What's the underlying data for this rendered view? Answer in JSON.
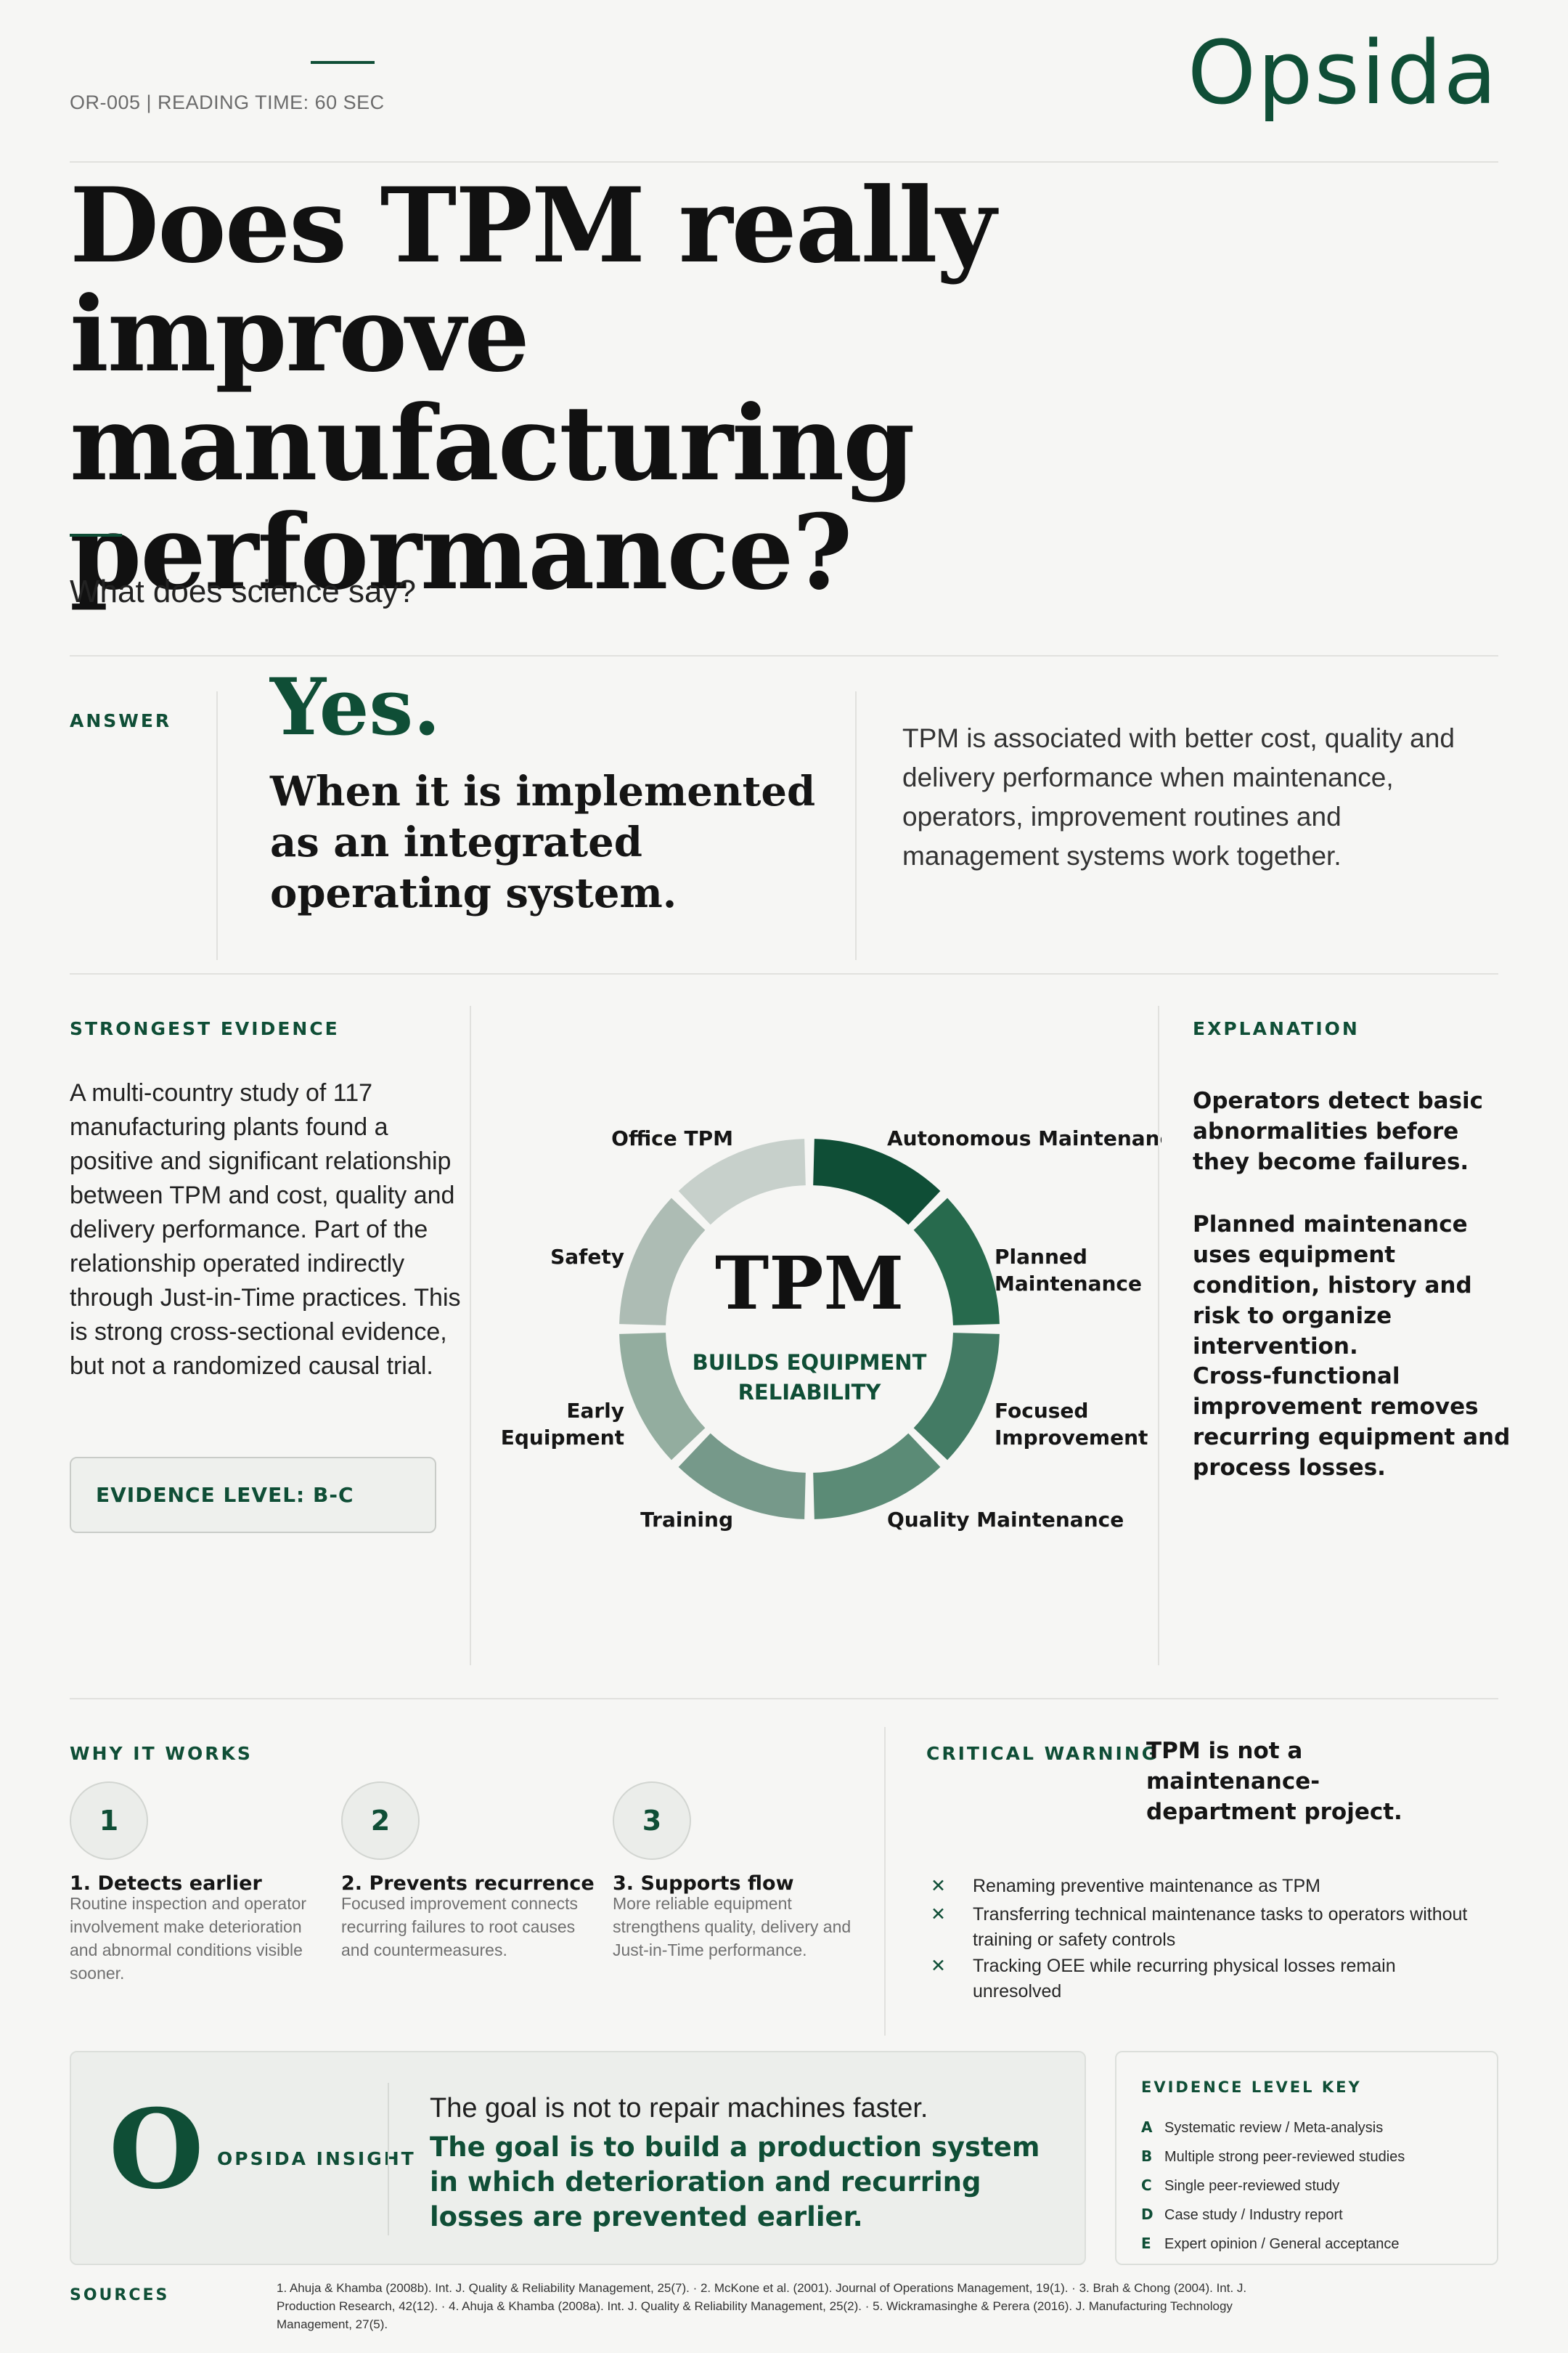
{
  "header": {
    "meta": "OR-005 | READING TIME: 60 SEC",
    "logo": "Opsida"
  },
  "hero": {
    "title": "Does TPM really improve manufacturing performance?",
    "subtitle": "What does science say?"
  },
  "answer": {
    "label": "ANSWER",
    "verdict": "Yes.",
    "headline": "When it is implemented as an integrated operating system.",
    "body": "TPM is associated with better cost, quality and delivery performance when maintenance, operators, improvement routines and management systems work together."
  },
  "evidence": {
    "label": "STRONGEST EVIDENCE",
    "text": "A multi-country study of 117 manufacturing plants found a positive and significant relationship between TPM and cost, quality and delivery performance. Part of the relationship operated indirectly through Just-in-Time practices. This is strong cross-sectional evidence, but not a randomized causal trial.",
    "level": "EVIDENCE LEVEL: B-C"
  },
  "diagram": {
    "center_title": "TPM",
    "center_sub_1": "BUILDS EQUIPMENT",
    "center_sub_2": "RELIABILITY",
    "pillars": [
      {
        "label_lines": [
          "Autonomous Maintenance"
        ],
        "color": "#0f4e36"
      },
      {
        "label_lines": [
          "Planned",
          "Maintenance"
        ],
        "color": "#276a4d"
      },
      {
        "label_lines": [
          "Focused",
          "Improvement"
        ],
        "color": "#437b64"
      },
      {
        "label_lines": [
          "Quality Maintenance"
        ],
        "color": "#5b8b76"
      },
      {
        "label_lines": [
          "Training"
        ],
        "color": "#76998a"
      },
      {
        "label_lines": [
          "Early",
          "Equipment"
        ],
        "color": "#93ad9f"
      },
      {
        "label_lines": [
          "Safety"
        ],
        "color": "#adbcb4"
      },
      {
        "label_lines": [
          "Office TPM"
        ],
        "color": "#c7d0cb"
      }
    ]
  },
  "explanation": {
    "label": "EXPLANATION",
    "items": [
      "Operators detect basic abnormalities before they become failures.",
      "Planned maintenance uses equipment condition, history and risk to organize intervention.",
      "Cross-functional improvement removes recurring equipment and process losses."
    ]
  },
  "why": {
    "label": "WHY IT WORKS",
    "steps": [
      {
        "num": "1",
        "title": "1. Detects earlier",
        "text": "Routine inspection and operator involvement make deterioration and abnormal conditions visible sooner."
      },
      {
        "num": "2",
        "title": "2. Prevents recurrence",
        "text": "Focused improvement connects recurring failures to root causes and countermeasures."
      },
      {
        "num": "3",
        "title": "3. Supports flow",
        "text": "More reliable equipment strengthens quality, delivery and Just-in-Time performance."
      }
    ]
  },
  "warning": {
    "label": "CRITICAL WARNING",
    "headline": "TPM is not a maintenance-department project.",
    "items": [
      "Renaming preventive maintenance as TPM",
      "Transferring technical maintenance tasks to operators without training or safety controls",
      "Tracking OEE while recurring physical losses remain unresolved"
    ],
    "bullet": "✕"
  },
  "insight": {
    "mark": "O",
    "label": "OPSIDA INSIGHT",
    "line1": "The goal is not to repair machines faster.",
    "line2": "The goal is to build a production system in which deterioration and recurring losses are prevented earlier."
  },
  "key": {
    "label": "EVIDENCE LEVEL KEY",
    "rows": [
      {
        "letter": "A",
        "text": "Systematic review / Meta-analysis"
      },
      {
        "letter": "B",
        "text": "Multiple strong peer-reviewed studies"
      },
      {
        "letter": "C",
        "text": "Single peer-reviewed study"
      },
      {
        "letter": "D",
        "text": "Case study / Industry report"
      },
      {
        "letter": "E",
        "text": "Expert opinion / General acceptance"
      }
    ]
  },
  "sources": {
    "label": "SOURCES",
    "text": "1. Ahuja & Khamba (2008b). Int. J. Quality & Reliability Management, 25(7). · 2. McKone et al. (2001). Journal of Operations Management, 19(1). · 3. Brah & Chong (2004). Int. J. Production Research, 42(12). · 4. Ahuja & Khamba (2008a). Int. J. Quality & Reliability Management, 25(2). · 5. Wickramasinghe & Perera (2016). J. Manufacturing Technology Management, 27(5)."
  },
  "colors": {
    "accent": "#0f4e36",
    "background": "#f6f6f4"
  }
}
